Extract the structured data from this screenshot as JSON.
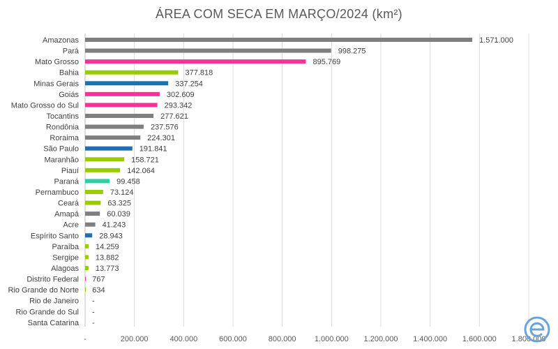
{
  "chart_data": {
    "type": "bar",
    "orientation": "horizontal",
    "title": "ÁREA COM SECA EM MARÇO/2024 (km²)",
    "xlim": [
      0,
      1800000
    ],
    "x_ticks": [
      0,
      200000,
      400000,
      600000,
      800000,
      1000000,
      1200000,
      1400000,
      1600000,
      1800000
    ],
    "x_tick_labels": [
      "-",
      "200.000",
      "400.000",
      "600.000",
      "800.000",
      "1.000.000",
      "1.200.000",
      "1.400.000",
      "1.600.000",
      "1.800.000"
    ],
    "grid": "vertical",
    "categories": [
      "Amazonas",
      "Pará",
      "Mato Grosso",
      "Bahia",
      "Minas Gerais",
      "Goiás",
      "Mato Grosso do Sul",
      "Tocantins",
      "Rondônia",
      "Roraima",
      "São Paulo",
      "Maranhão",
      "Piauí",
      "Paraná",
      "Pernambuco",
      "Ceará",
      "Amapá",
      "Acre",
      "Espírito Santo",
      "Paraíba",
      "Sergipe",
      "Alagoas",
      "Distrito Federal",
      "Rio Grande do Norte",
      "Rio de Janeiro",
      "Rio Grande do Sul",
      "Santa Catarina"
    ],
    "values": [
      1571000,
      998275,
      895769,
      377818,
      337254,
      302609,
      293342,
      277621,
      237576,
      224301,
      191841,
      158721,
      142064,
      99458,
      73124,
      63325,
      60039,
      41243,
      28943,
      14259,
      13882,
      13773,
      767,
      634,
      0,
      0,
      0
    ],
    "value_labels": [
      "1.571.000",
      "998.275",
      "895.769",
      "377.818",
      "337.254",
      "302.609",
      "293.342",
      "277.621",
      "237.576",
      "224.301",
      "191.841",
      "158.721",
      "142.064",
      "99.458",
      "73.124",
      "63.325",
      "60.039",
      "41.243",
      "28.943",
      "14.259",
      "13.882",
      "13.773",
      "767",
      "634",
      "-",
      "-",
      "-"
    ],
    "bar_colors": [
      "#7f7f7f",
      "#7f7f7f",
      "#f0359a",
      "#99cc00",
      "#1a6fb5",
      "#f0359a",
      "#f0359a",
      "#7f7f7f",
      "#7f7f7f",
      "#7f7f7f",
      "#1a6fb5",
      "#99cc00",
      "#99cc00",
      "#2ecfa6",
      "#99cc00",
      "#99cc00",
      "#7f7f7f",
      "#7f7f7f",
      "#1a6fb5",
      "#99cc00",
      "#99cc00",
      "#99cc00",
      "#f0359a",
      "#99cc00",
      "#1a6fb5",
      "#2ecfa6",
      "#2ecfa6"
    ]
  },
  "logo": {
    "icon": "e-logo-icon",
    "color": "#6ba3d6"
  }
}
